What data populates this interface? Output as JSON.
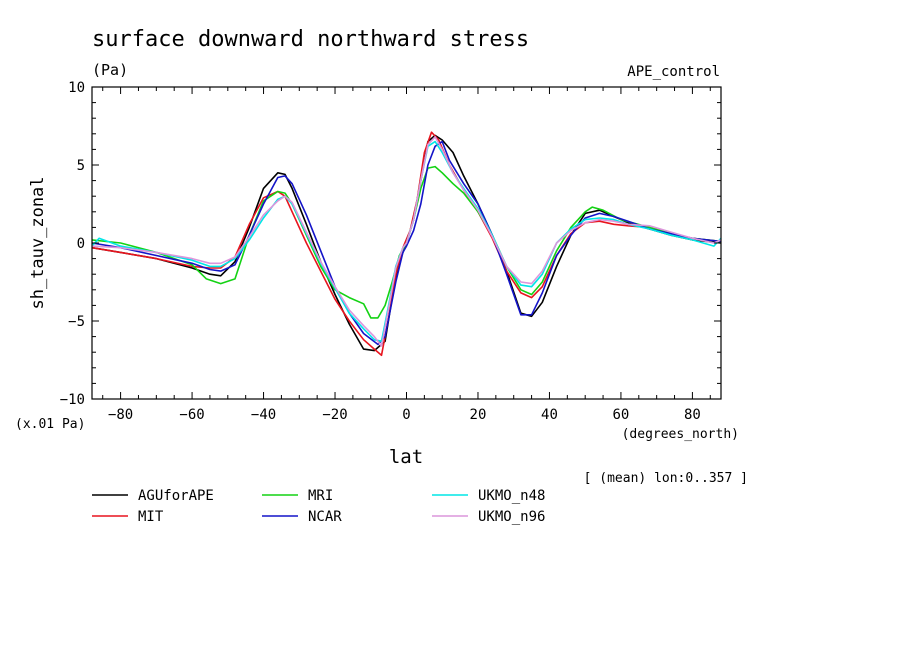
{
  "chart_data": {
    "type": "line",
    "title": "surface downward northward stress",
    "units": "(Pa)",
    "experiment": "APE_control",
    "ylabel": "sh_tauv_zonal",
    "xlabel": "lat",
    "x_units": "(degrees_north)",
    "y_scale_note": "(x.01 Pa)",
    "averaging_note": "[ (mean) lon:0..357 ]",
    "xlim": [
      -88,
      88
    ],
    "ylim": [
      -10,
      10
    ],
    "x_ticks": [
      -80,
      -60,
      -40,
      -20,
      0,
      20,
      40,
      60,
      80
    ],
    "y_ticks": [
      -10,
      -5,
      0,
      5,
      10
    ],
    "x_tick_labels": [
      "−80",
      "−60",
      "−40",
      "−20",
      "0",
      "20",
      "40",
      "60",
      "80"
    ],
    "y_tick_labels": [
      "−10",
      "−5",
      "0",
      "5",
      "10"
    ],
    "series": [
      {
        "name": "AGUforAPE",
        "color": "#000000",
        "x": [
          -88,
          -80,
          -70,
          -60,
          -55,
          -52,
          -48,
          -44,
          -40,
          -36,
          -34,
          -32,
          -28,
          -24,
          -20,
          -16,
          -12,
          -9,
          -6,
          -4,
          -2,
          0,
          2,
          4,
          6,
          8,
          10,
          13,
          16,
          20,
          24,
          28,
          32,
          35,
          38,
          42,
          46,
          50,
          54,
          58,
          62,
          68,
          74,
          80,
          88
        ],
        "y": [
          -0.3,
          -0.6,
          -1.0,
          -1.6,
          -2.0,
          -2.1,
          -1.2,
          1.0,
          3.5,
          4.5,
          4.4,
          3.5,
          1.2,
          -1.2,
          -3.3,
          -5.2,
          -6.8,
          -6.9,
          -6.3,
          -3.5,
          -1.2,
          0.0,
          1.5,
          4.0,
          6.5,
          6.9,
          6.6,
          5.8,
          4.3,
          2.5,
          0.5,
          -1.8,
          -4.5,
          -4.7,
          -3.8,
          -1.5,
          0.5,
          1.9,
          2.1,
          1.7,
          1.3,
          0.9,
          0.5,
          0.2,
          0.0
        ]
      },
      {
        "name": "MIT",
        "color": "#e8141e",
        "x": [
          -88,
          -80,
          -70,
          -60,
          -55,
          -52,
          -48,
          -44,
          -40,
          -36,
          -34,
          -32,
          -28,
          -24,
          -20,
          -16,
          -12,
          -9,
          -7,
          -5,
          -3,
          -1,
          1,
          3,
          5,
          7,
          9,
          12,
          16,
          20,
          24,
          28,
          32,
          35,
          38,
          42,
          46,
          50,
          54,
          58,
          62,
          68,
          74,
          80,
          88
        ],
        "y": [
          -0.3,
          -0.6,
          -1.0,
          -1.5,
          -1.6,
          -1.6,
          -0.9,
          1.2,
          2.9,
          3.3,
          3.0,
          2.0,
          0.0,
          -1.8,
          -3.6,
          -5.0,
          -6.2,
          -6.8,
          -7.2,
          -4.8,
          -2.0,
          -0.3,
          0.8,
          2.8,
          5.8,
          7.1,
          6.6,
          5.0,
          3.4,
          2.0,
          0.3,
          -1.8,
          -3.2,
          -3.5,
          -2.8,
          -0.8,
          0.6,
          1.3,
          1.4,
          1.2,
          1.1,
          1.0,
          0.6,
          0.3,
          0.1
        ]
      },
      {
        "name": "MRI",
        "color": "#14d214",
        "x": [
          -88,
          -80,
          -70,
          -60,
          -56,
          -52,
          -48,
          -44,
          -40,
          -36,
          -34,
          -32,
          -28,
          -24,
          -20,
          -16,
          -12,
          -10,
          -8,
          -6,
          -4,
          -2,
          0,
          2,
          4,
          6,
          8,
          10,
          13,
          16,
          20,
          24,
          28,
          32,
          35,
          38,
          42,
          46,
          50,
          52,
          55,
          60,
          68,
          74,
          80,
          88
        ],
        "y": [
          0.2,
          0.0,
          -0.6,
          -1.4,
          -2.3,
          -2.6,
          -2.3,
          0.5,
          2.7,
          3.3,
          3.2,
          2.5,
          0.5,
          -1.5,
          -3.0,
          -3.5,
          -3.9,
          -4.8,
          -4.8,
          -4.0,
          -2.5,
          -0.8,
          0.0,
          1.5,
          3.5,
          4.8,
          4.9,
          4.5,
          3.8,
          3.2,
          2.0,
          0.5,
          -1.5,
          -3.0,
          -3.3,
          -2.5,
          -0.5,
          1.0,
          2.0,
          2.3,
          2.1,
          1.5,
          1.0,
          0.6,
          0.3,
          0.1
        ]
      },
      {
        "name": "NCAR",
        "color": "#1414c8",
        "x": [
          -88,
          -80,
          -70,
          -60,
          -55,
          -52,
          -48,
          -44,
          -40,
          -36,
          -34,
          -32,
          -28,
          -24,
          -20,
          -16,
          -12,
          -8,
          -6,
          -3,
          -1,
          0,
          2,
          4,
          6,
          8,
          10,
          12,
          16,
          20,
          24,
          28,
          32,
          35,
          38,
          42,
          46,
          50,
          54,
          58,
          62,
          68,
          74,
          80,
          88
        ],
        "y": [
          0.0,
          -0.3,
          -0.8,
          -1.3,
          -1.7,
          -1.8,
          -1.4,
          0.5,
          2.5,
          4.2,
          4.3,
          3.8,
          1.8,
          -0.5,
          -2.8,
          -4.5,
          -5.8,
          -6.5,
          -6.0,
          -2.5,
          -0.6,
          -0.2,
          0.8,
          2.5,
          5.0,
          6.2,
          6.5,
          5.3,
          3.8,
          2.5,
          0.5,
          -2.0,
          -4.6,
          -4.6,
          -3.2,
          -0.8,
          0.5,
          1.6,
          1.9,
          1.7,
          1.4,
          0.9,
          0.6,
          0.3,
          0.1
        ]
      },
      {
        "name": "UKMO_n48",
        "color": "#00e6e6",
        "x": [
          -88,
          -86,
          -80,
          -70,
          -60,
          -55,
          -52,
          -48,
          -44,
          -40,
          -36,
          -34,
          -32,
          -28,
          -24,
          -20,
          -16,
          -12,
          -9,
          -7,
          -5,
          -3,
          -1,
          0,
          2,
          4,
          6,
          8,
          10,
          13,
          16,
          20,
          24,
          28,
          32,
          35,
          38,
          42,
          46,
          50,
          54,
          58,
          62,
          68,
          74,
          80,
          86,
          88
        ],
        "y": [
          -0.2,
          0.3,
          -0.2,
          -0.6,
          -1.1,
          -1.5,
          -1.5,
          -1.0,
          0.2,
          1.6,
          2.8,
          3.0,
          2.5,
          0.6,
          -1.3,
          -2.9,
          -4.5,
          -5.5,
          -6.2,
          -6.3,
          -4.0,
          -1.5,
          -0.3,
          0.0,
          1.5,
          4.0,
          6.2,
          6.5,
          5.8,
          4.5,
          3.5,
          2.2,
          0.5,
          -1.5,
          -2.7,
          -2.8,
          -2.0,
          0.0,
          0.9,
          1.5,
          1.6,
          1.5,
          1.2,
          0.9,
          0.5,
          0.2,
          -0.2,
          0.3
        ]
      },
      {
        "name": "UKMO_n96",
        "color": "#dc96dc",
        "x": [
          -88,
          -80,
          -70,
          -60,
          -55,
          -52,
          -48,
          -44,
          -40,
          -36,
          -34,
          -32,
          -28,
          -24,
          -20,
          -16,
          -12,
          -9,
          -7,
          -5,
          -3,
          -1,
          0,
          2,
          4,
          6,
          8,
          10,
          13,
          16,
          20,
          24,
          28,
          32,
          35,
          38,
          42,
          46,
          50,
          54,
          58,
          62,
          68,
          74,
          80,
          86,
          88
        ],
        "y": [
          -0.2,
          -0.3,
          -0.6,
          -1.0,
          -1.3,
          -1.3,
          -0.9,
          0.4,
          1.8,
          2.7,
          3.0,
          2.6,
          0.7,
          -1.2,
          -2.8,
          -4.3,
          -5.3,
          -6.0,
          -6.6,
          -4.2,
          -1.6,
          -0.3,
          0.0,
          1.5,
          4.0,
          6.3,
          6.8,
          6.0,
          4.5,
          3.4,
          2.1,
          0.4,
          -1.5,
          -2.5,
          -2.6,
          -1.8,
          0.0,
          0.8,
          1.3,
          1.5,
          1.4,
          1.2,
          1.1,
          0.7,
          0.3,
          0.0,
          0.2
        ]
      }
    ],
    "legend_placement": "bottom"
  }
}
